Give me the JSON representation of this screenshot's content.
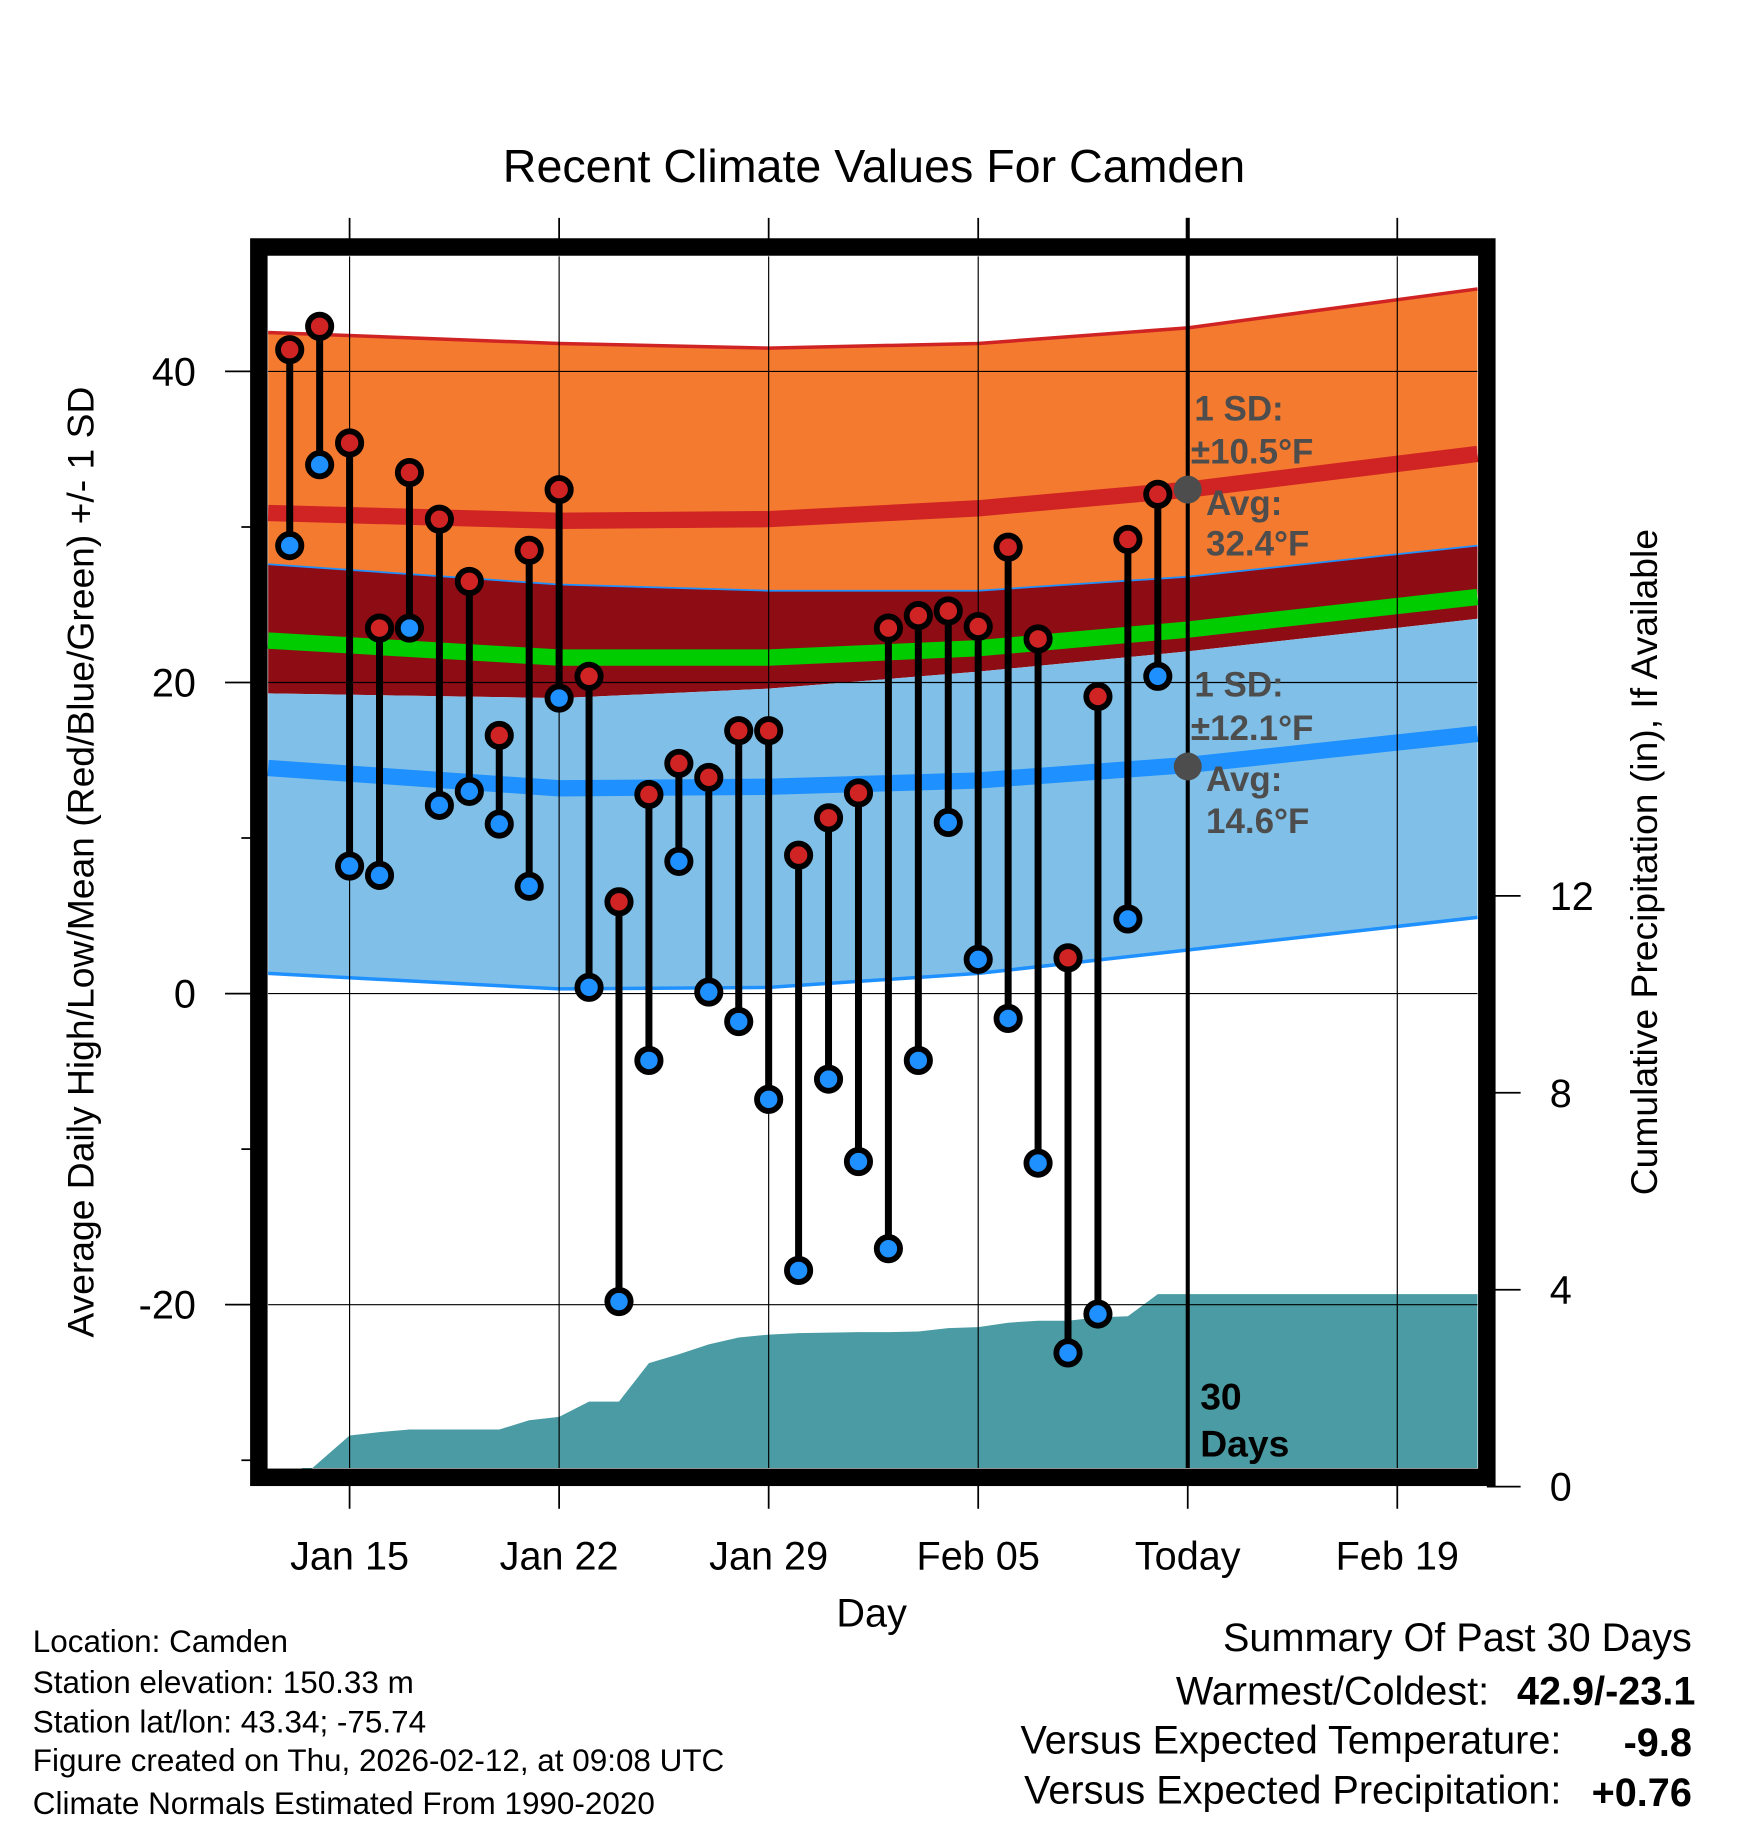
{
  "chart_data": {
    "type": "line",
    "title": "Recent Climate Values For Camden",
    "xlabel": "Day",
    "ylabel": "Average Daily High/Low/Mean (Red/Blue/Green) +/- 1 SD",
    "y2label": "Cumulative Precipitation (in), If Available",
    "x_unit": "days since Jan 13",
    "xlim": [
      -0.72,
      39.68
    ],
    "ylim": [
      -30.5,
      47.4
    ],
    "y2lim": [
      0.19,
      24.8
    ],
    "grid": true,
    "x_ticks": [
      {
        "x": 2,
        "label": "Jan 15"
      },
      {
        "x": 9,
        "label": "Jan 22"
      },
      {
        "x": 16,
        "label": "Jan 29"
      },
      {
        "x": 23,
        "label": "Feb 05"
      },
      {
        "x": 30,
        "label": "Today"
      },
      {
        "x": 37,
        "label": "Feb 19"
      }
    ],
    "y_ticks": [
      {
        "y": 40,
        "label": "40"
      },
      {
        "y": 20,
        "label": "20"
      },
      {
        "y": 0,
        "label": "0"
      },
      {
        "y": -20,
        "label": "-20"
      }
    ],
    "y_minor_ticks": [
      30,
      10,
      -10,
      -30
    ],
    "y2_ticks": [
      {
        "y": 0,
        "label": "0"
      },
      {
        "y": 4,
        "label": "4"
      },
      {
        "y": 8,
        "label": "8"
      },
      {
        "y": 12,
        "label": "12"
      }
    ],
    "daily": {
      "x": [
        0,
        1,
        2,
        3,
        4,
        5,
        6,
        7,
        8,
        9,
        10,
        11,
        12,
        13,
        14,
        15,
        16,
        17,
        18,
        19,
        20,
        21,
        22,
        23,
        24,
        25,
        26,
        27,
        28,
        29
      ],
      "high": [
        41.4,
        42.9,
        35.4,
        23.5,
        33.5,
        30.5,
        26.5,
        16.6,
        28.5,
        32.4,
        20.4,
        5.9,
        12.8,
        14.8,
        13.9,
        16.9,
        16.9,
        8.9,
        11.3,
        12.9,
        23.5,
        24.3,
        24.6,
        23.6,
        28.7,
        22.8,
        2.3,
        19.1,
        29.2,
        32.1
      ],
      "low": [
        28.8,
        34.0,
        8.2,
        7.6,
        23.5,
        12.1,
        13.0,
        10.9,
        6.9,
        19.0,
        0.4,
        -19.8,
        -4.3,
        8.5,
        0.1,
        -1.8,
        -6.8,
        -17.8,
        -5.5,
        -10.8,
        -16.4,
        -4.3,
        11.0,
        2.2,
        -1.6,
        -10.9,
        -23.1,
        -20.6,
        4.8,
        20.4
      ]
    },
    "normals": {
      "x": [
        -0.72,
        9,
        16,
        23,
        30,
        39.68
      ],
      "high_upper": [
        42.5,
        41.8,
        41.5,
        41.8,
        42.8,
        45.3
      ],
      "high_mean": [
        30.9,
        30.4,
        30.5,
        31.2,
        32.4,
        34.7
      ],
      "high_lower": [
        27.6,
        26.3,
        25.9,
        25.9,
        26.8,
        28.8
      ],
      "mean": [
        22.7,
        21.6,
        21.6,
        22.2,
        23.4,
        25.5
      ],
      "low_upper": [
        19.3,
        19.0,
        19.6,
        20.7,
        22.0,
        24.1
      ],
      "low_mean": [
        14.5,
        13.2,
        13.3,
        13.7,
        14.7,
        16.7
      ],
      "low_lower": [
        1.3,
        0.3,
        0.4,
        1.3,
        2.8,
        4.9
      ]
    },
    "precip": {
      "x": [
        0.4,
        2,
        3,
        4,
        5,
        6,
        7,
        8,
        9,
        10,
        11,
        12,
        13,
        14,
        15,
        16,
        17,
        18,
        19,
        20,
        21,
        22,
        23,
        24,
        25,
        26,
        27,
        28,
        29,
        30,
        39.68
      ],
      "y": [
        0,
        0.85,
        0.92,
        0.97,
        0.97,
        0.97,
        0.97,
        1.16,
        1.23,
        1.54,
        1.54,
        2.32,
        2.5,
        2.7,
        2.84,
        2.9,
        2.93,
        2.94,
        2.95,
        2.95,
        2.96,
        3.03,
        3.05,
        3.14,
        3.18,
        3.18,
        3.25,
        3.27,
        3.72,
        3.72,
        3.72
      ]
    },
    "annotations": {
      "high_sd": "1 SD:",
      "high_sd_val": "±10.5°F",
      "high_avg": "Avg:",
      "high_avg_val": "32.4°F",
      "low_sd": "1 SD:",
      "low_sd_val": "±12.1°F",
      "low_avg": "Avg:",
      "low_avg_val": "14.6°F",
      "days_num": "30",
      "days_word": "Days",
      "high_avg_value": 32.4,
      "low_avg_value": 14.6,
      "today_x": 30
    },
    "colors": {
      "high_band": "#f47a2f",
      "high_mean": "#d02323",
      "mid_band": "#8e0c14",
      "mean": "#00cc00",
      "low_band": "#80c0e8",
      "low_mean": "#1e90ff",
      "precip": "#4a9ba3",
      "high_point": "#d02323",
      "low_point": "#1e90ff",
      "annotation": "#4d4d4d"
    }
  },
  "footer": {
    "location": "Location: Camden",
    "elevation": "Station elevation: 150.33 m",
    "latlon": "Station lat/lon: 43.34; -75.74",
    "created": "Figure created on Thu, 2026-02-12, at 09:08 UTC",
    "normals": "Climate Normals Estimated From 1990-2020"
  },
  "summary": {
    "title": "Summary Of Past 30 Days",
    "warm_cold_label": "Warmest/Coldest:",
    "warm_cold_value": "42.9/-23.1",
    "temp_label": "Versus Expected Temperature:",
    "temp_value": "-9.8",
    "temp_color": "#1e90ff",
    "precip_label": "Versus Expected Precipitation:",
    "precip_value": "+0.76",
    "precip_color": "#22bb00"
  }
}
